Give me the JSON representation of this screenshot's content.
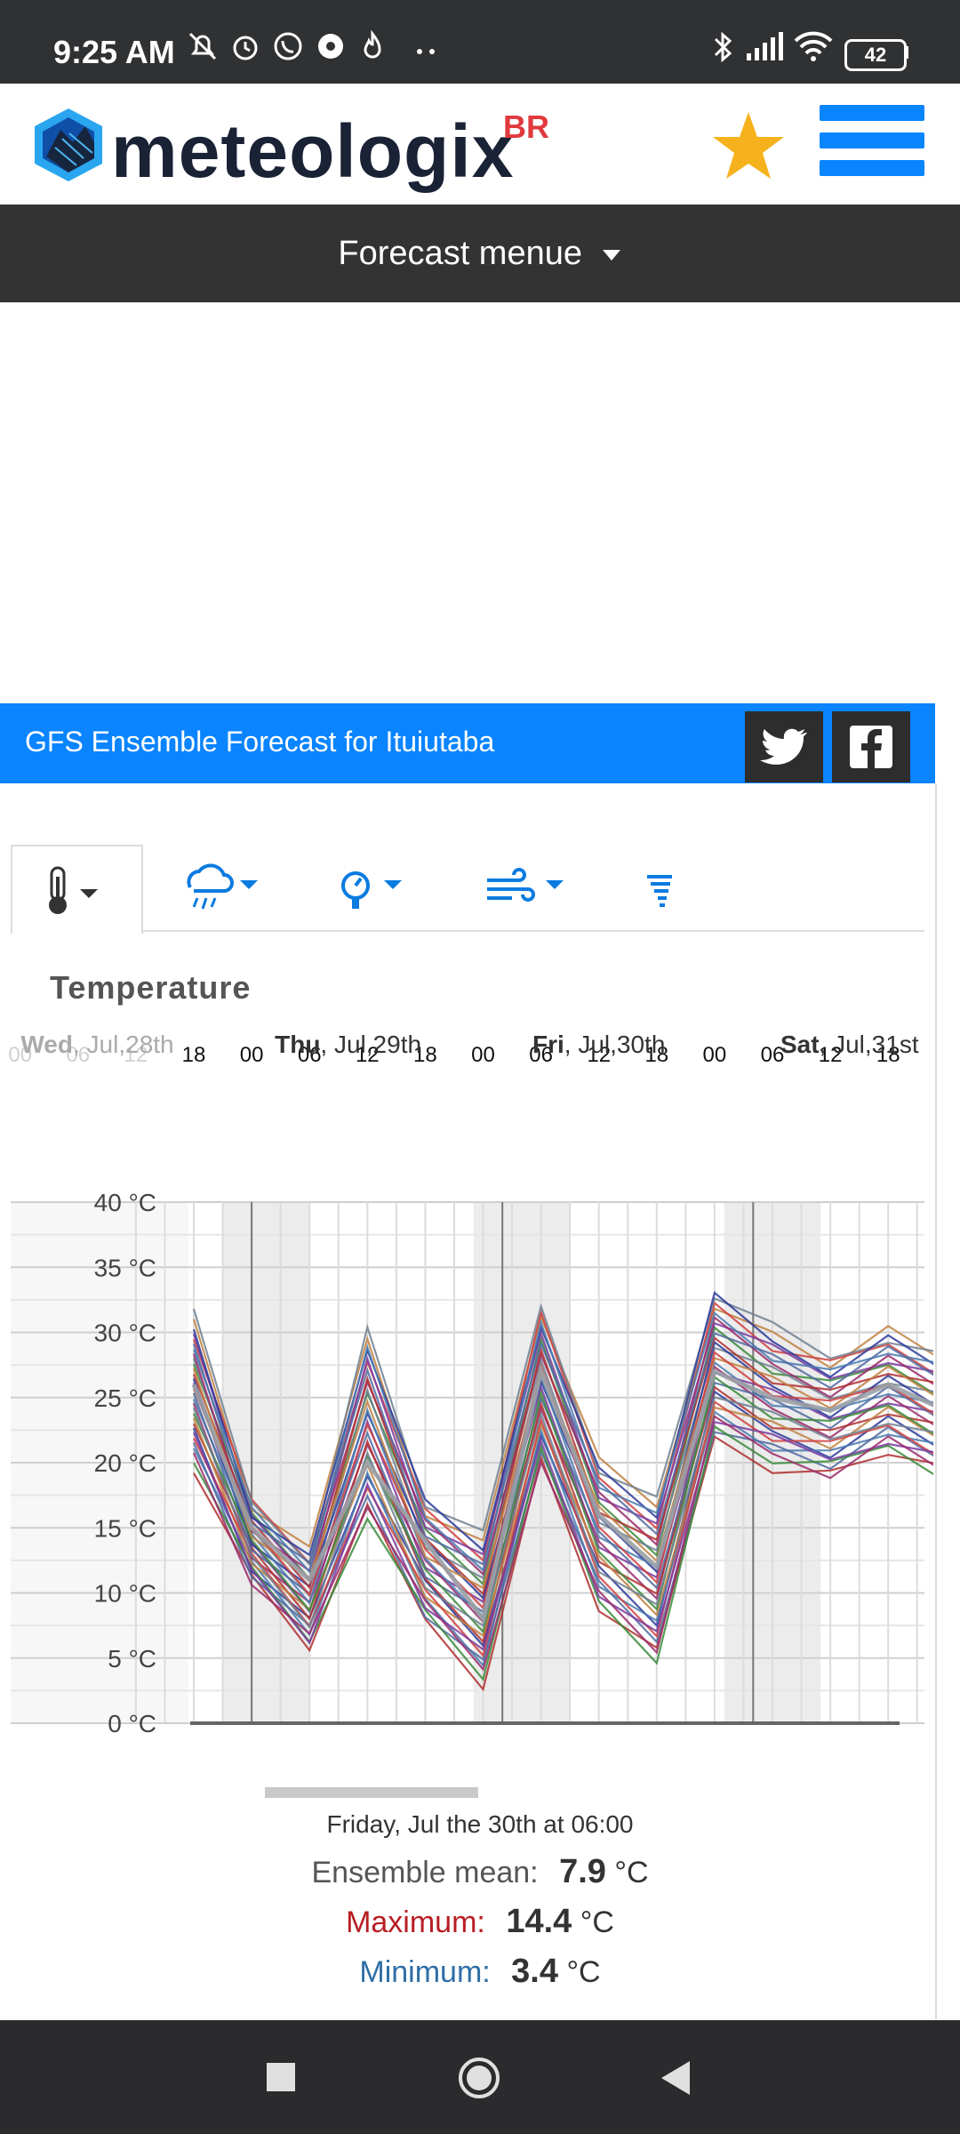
{
  "status_bar": {
    "time": "9:25 AM",
    "battery": "42",
    "icons": [
      "mute-bell-icon",
      "alarm-icon",
      "whatsapp-icon",
      "chrome-icon",
      "flame-icon",
      "more-dots-icon",
      "bluetooth-icon",
      "signal-icon",
      "wifi-icon",
      "battery-icon"
    ]
  },
  "header": {
    "brand": "meteologix",
    "brand_suffix": "BR",
    "favorite_icon": "star-icon",
    "menu_icon": "hamburger-icon"
  },
  "forecast_menu": {
    "label": "Forecast menue"
  },
  "banner": {
    "title": "GFS Ensemble Forecast for Ituiutaba",
    "social": [
      "twitter-icon",
      "facebook-icon"
    ]
  },
  "tabs": [
    {
      "icon": "thermometer-icon",
      "active": true
    },
    {
      "icon": "rain-cloud-icon",
      "active": false
    },
    {
      "icon": "pressure-gauge-icon",
      "active": false
    },
    {
      "icon": "wind-icon",
      "active": false
    },
    {
      "icon": "tornado-icon",
      "active": false
    }
  ],
  "chart_data": {
    "type": "line",
    "title": "Temperature",
    "unit": "°C",
    "ylim": [
      0,
      40
    ],
    "yticks": [
      "0 °C",
      "5 °C",
      "10 °C",
      "15 °C",
      "20 °C",
      "25 °C",
      "30 °C",
      "35 °C",
      "40 °C"
    ],
    "hour_ticks": [
      "00",
      "06",
      "12",
      "18",
      "00",
      "06",
      "12",
      "18",
      "00",
      "06",
      "12",
      "18",
      "00",
      "06",
      "12",
      "18"
    ],
    "day_labels": [
      {
        "day": "Wed",
        "date": ", Jul,28th"
      },
      {
        "day": "Thu",
        "date": ", Jul,29th"
      },
      {
        "day": "Fri",
        "date": ", Jul,30th"
      },
      {
        "day": "Sat",
        "date": ", Jul,31st"
      }
    ],
    "x_hours": [
      0,
      6,
      12,
      18,
      24,
      30,
      36,
      42,
      48,
      54,
      60,
      66,
      72,
      78,
      84
    ],
    "mean": [
      26,
      15,
      11,
      20,
      14,
      8,
      27,
      16,
      12,
      27,
      25,
      24,
      26,
      24,
      22
    ],
    "series_max": [
      31,
      17,
      13,
      30,
      17,
      14,
      32,
      20,
      17,
      33,
      30,
      28,
      30,
      28,
      27
    ],
    "series_min": [
      20,
      11,
      6,
      16,
      8,
      3.4,
      20,
      9,
      5,
      22,
      20,
      19,
      21,
      19,
      18
    ],
    "colors": [
      "#b03030",
      "#2a3a9a",
      "#7a3aa0",
      "#3a8a3a",
      "#c08040",
      "#4a7ab0",
      "#9a2a6a",
      "#708090",
      "#d04040",
      "#506aa0"
    ],
    "grid": true
  },
  "readout": {
    "date": "Friday, Jul the 30th at 06:00",
    "mean_label": "Ensemble mean:",
    "mean_value": "7.9",
    "max_label": "Maximum:",
    "max_value": "14.4",
    "min_label": "Minimum:",
    "min_value": "3.4",
    "unit": "°C",
    "max_color": "#b81e23",
    "min_color": "#2f6ea6"
  },
  "nav_bar": {
    "buttons": [
      "recent-apps-icon",
      "home-icon",
      "back-icon"
    ]
  }
}
